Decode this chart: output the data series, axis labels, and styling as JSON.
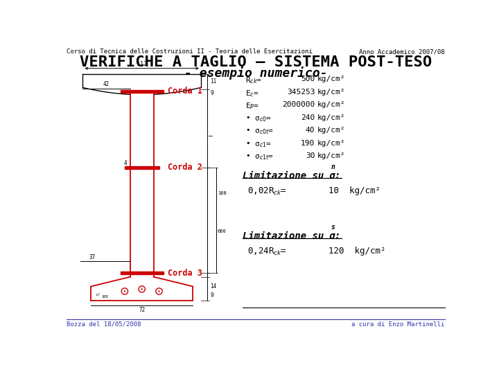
{
  "title_line1": "VERIFICHE A TAGLIO – SISTEMA POST-TESO",
  "title_line2": "- esempio numerico-",
  "header_left": "Corso di Tecnica delle Costruzioni II - Teoria delle Esercitazioni",
  "header_right": "Anno Accademico 2007/08",
  "footer_left": "Bozza del 18/05/2008",
  "footer_right": "a cura di Enzo Martinelli",
  "red_color": "#cc0000",
  "black_color": "#000000",
  "blue_color": "#3333aa",
  "bg_color": "#ffffff",
  "corda_labels": [
    "Corda 1",
    "Corda 2",
    "Corda 3"
  ]
}
